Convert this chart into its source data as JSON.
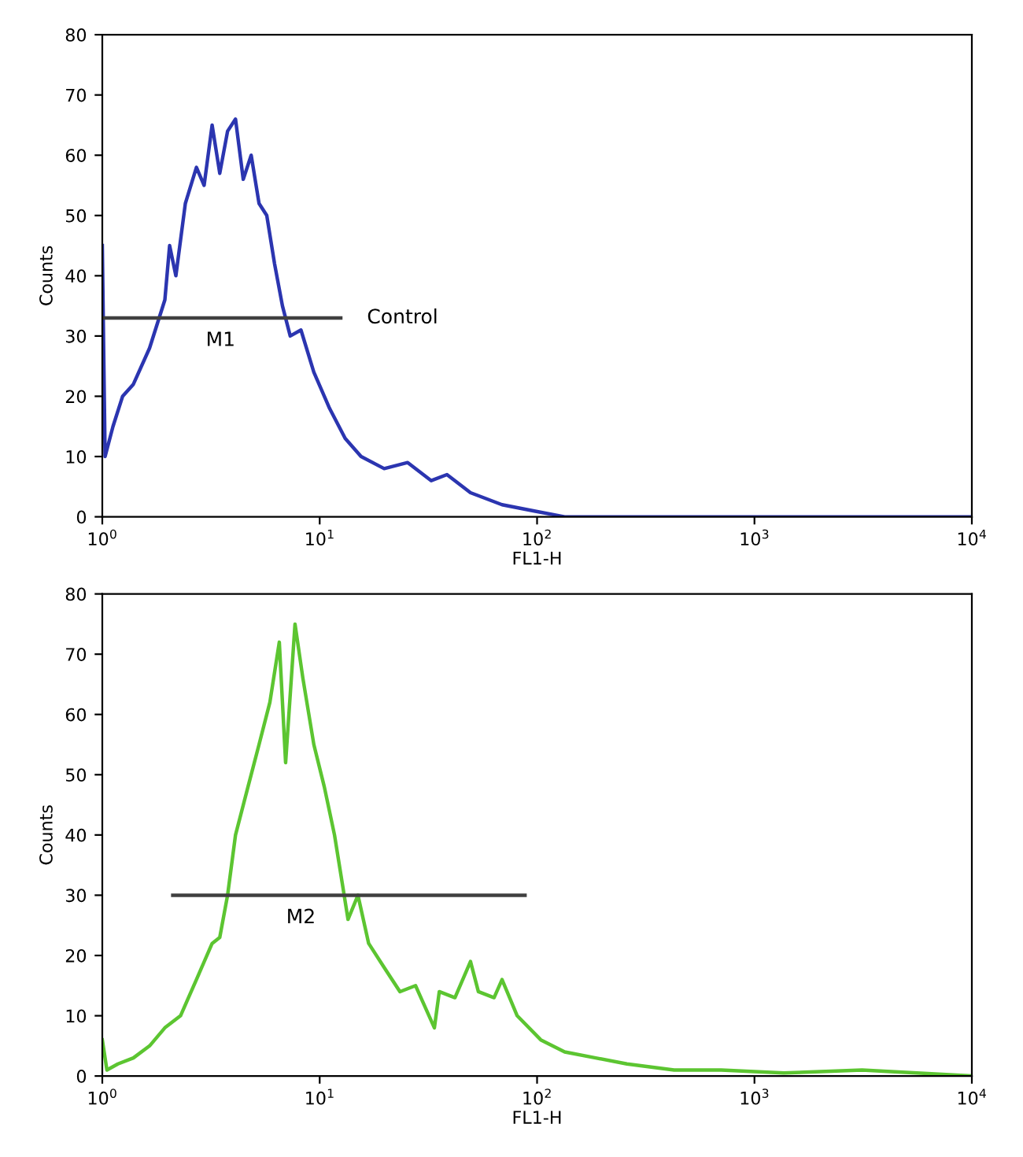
{
  "chart_data": [
    {
      "type": "line",
      "xlabel": "FL1-H",
      "ylabel": "Counts",
      "log": "x",
      "grid": false,
      "marker": "none",
      "line_style": "solid",
      "xlim": [
        1,
        10000
      ],
      "ylim": [
        0,
        80
      ],
      "xticks": [
        {
          "value": 1,
          "label": "10$^{0}$"
        },
        {
          "value": 10,
          "label": "10$^{1}$"
        },
        {
          "value": 100,
          "label": "10$^{2}$"
        },
        {
          "value": 1000,
          "label": "10$^{3}$"
        },
        {
          "value": 10000,
          "label": "10$^{4}$"
        }
      ],
      "yticks": [
        0,
        10,
        20,
        30,
        40,
        50,
        60,
        70,
        80
      ],
      "series": [
        {
          "color": "#2b35b0",
          "x": [
            1,
            1.03,
            1.12,
            1.24,
            1.39,
            1.65,
            1.94,
            2.04,
            2.18,
            2.41,
            2.71,
            2.94,
            3.2,
            3.47,
            3.77,
            4.1,
            4.45,
            4.84,
            5.26,
            5.71,
            6.2,
            6.74,
            7.32,
            8.2,
            9.4,
            11.1,
            13.1,
            15.5,
            19.8,
            25.4,
            32.6,
            38.5,
            49.4,
            69,
            96,
            134,
            10000
          ],
          "values": [
            45,
            10,
            15,
            20,
            22,
            28,
            36,
            45,
            40,
            52,
            58,
            55,
            65,
            57,
            64,
            66,
            56,
            60,
            52,
            50,
            42,
            35,
            30,
            31,
            24,
            18,
            13,
            10,
            8,
            9,
            6,
            7,
            4,
            2,
            1,
            0,
            0
          ]
        },
        {
          "type": "line",
          "color": "#404040",
          "x": [
            1,
            3.5,
            12.5
          ],
          "values": [
            33,
            33,
            33
          ]
        }
      ],
      "annotations": [
        {
          "text": "M1",
          "x": 3.5,
          "y": 33
        },
        {
          "text": "Control",
          "x": 12.5,
          "y": 33
        }
      ]
    },
    {
      "type": "line",
      "xlabel": "FL1-H",
      "ylabel": "Counts",
      "log": "x",
      "grid": false,
      "marker": "none",
      "line_style": "solid",
      "xlim": [
        1,
        10000
      ],
      "ylim": [
        0,
        80
      ],
      "xticks": [
        {
          "value": 1,
          "label": "10$^{0}$"
        },
        {
          "value": 10,
          "label": "10$^{1}$"
        },
        {
          "value": 100,
          "label": "10$^{2}$"
        },
        {
          "value": 1000,
          "label": "10$^{3}$"
        },
        {
          "value": 10000,
          "label": "10$^{4}$"
        }
      ],
      "yticks": [
        0,
        10,
        20,
        30,
        40,
        50,
        60,
        70,
        80
      ],
      "series": [
        {
          "color": "#5cc531",
          "x": [
            1,
            1.05,
            1.18,
            1.39,
            1.65,
            1.94,
            2.29,
            2.71,
            3.2,
            3.47,
            3.77,
            4.1,
            4.68,
            5.26,
            5.9,
            6.52,
            6.97,
            7.7,
            8.37,
            9.4,
            10.5,
            11.7,
            12.7,
            13.5,
            15.0,
            16.8,
            19.8,
            23.4,
            27.6,
            33.7,
            35.5,
            41.9,
            49.4,
            53.7,
            63.4,
            69,
            81,
            104,
            134,
            186,
            259,
            427,
            703,
            1365,
            3126,
            10000
          ],
          "values": [
            6,
            1,
            2,
            3,
            5,
            8,
            10,
            16,
            22,
            23,
            30,
            40,
            48,
            55,
            62,
            72,
            52,
            75,
            66,
            55,
            48,
            40,
            32,
            26,
            30,
            22,
            18,
            14,
            15,
            8,
            14,
            13,
            19,
            14,
            13,
            16,
            10,
            6,
            4,
            3,
            2,
            1,
            1,
            0.5,
            1,
            0
          ]
        },
        {
          "type": "line",
          "color": "#404040",
          "x": [
            2.11,
            8.2,
            88
          ],
          "values": [
            30,
            30,
            30
          ]
        }
      ],
      "annotations": [
        {
          "text": "M2",
          "x": 8.2,
          "y": 30
        }
      ]
    }
  ]
}
